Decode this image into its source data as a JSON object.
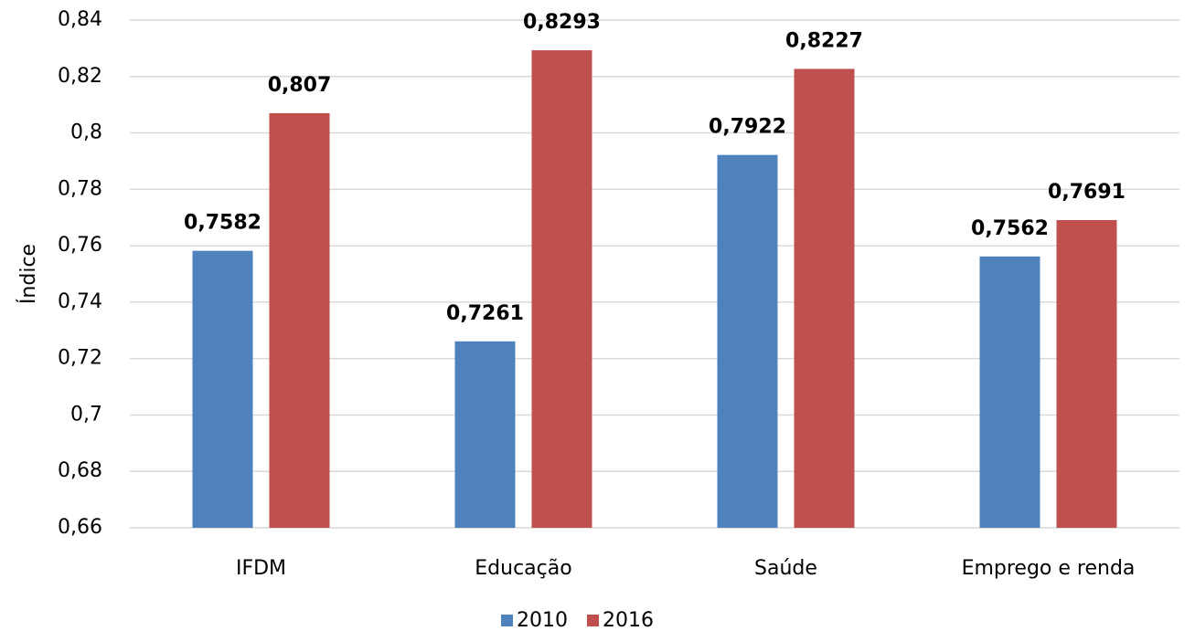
{
  "chart_data": {
    "type": "bar",
    "y_label": "Índice",
    "categories": [
      "IFDM",
      "Educação",
      "Saúde",
      "Emprego e renda"
    ],
    "series": [
      {
        "name": "2010",
        "color": "#4f81bd",
        "values": [
          0.7582,
          0.7261,
          0.7922,
          0.7562
        ],
        "value_labels": [
          "0,7582",
          "0,7261",
          "0,7922",
          "0,7562"
        ]
      },
      {
        "name": "2016",
        "color": "#c0504d",
        "values": [
          0.807,
          0.8293,
          0.8227,
          0.7691
        ],
        "value_labels": [
          "0,807",
          "0,8293",
          "0,8227",
          "0,7691"
        ]
      }
    ],
    "ylim": [
      0.66,
      0.84
    ],
    "yticks": [
      {
        "value": 0.66,
        "label": "0,66"
      },
      {
        "value": 0.68,
        "label": "0,68"
      },
      {
        "value": 0.7,
        "label": "0,7"
      },
      {
        "value": 0.72,
        "label": "0,72"
      },
      {
        "value": 0.74,
        "label": "0,74"
      },
      {
        "value": 0.76,
        "label": "0,76"
      },
      {
        "value": 0.78,
        "label": "0,78"
      },
      {
        "value": 0.8,
        "label": "0,8"
      },
      {
        "value": 0.82,
        "label": "0,82"
      },
      {
        "value": 0.84,
        "label": "0,84"
      }
    ],
    "grid": true,
    "legend": "bottom"
  }
}
